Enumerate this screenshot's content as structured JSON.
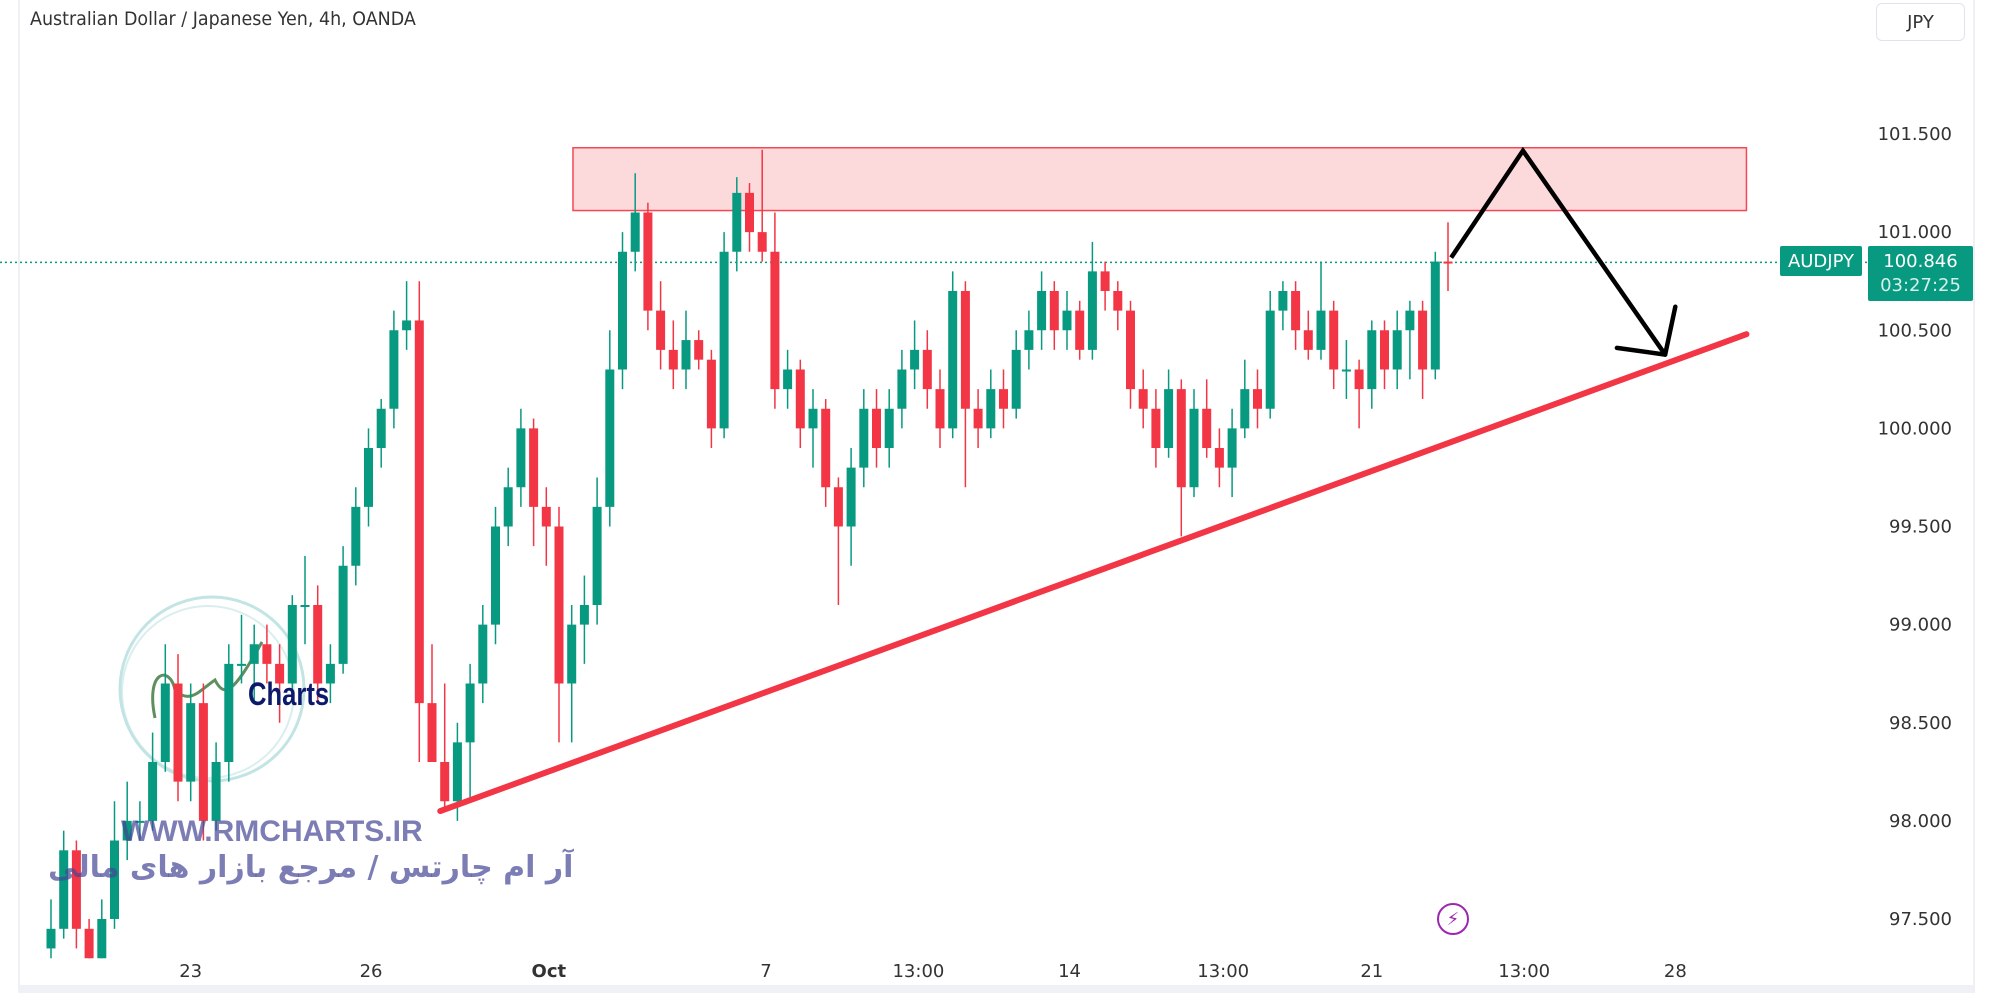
{
  "header": {
    "title": "Australian Dollar / Japanese Yen, 4h, OANDA",
    "currency_button": "JPY"
  },
  "price_tag": {
    "symbol": "AUDJPY",
    "price": "100.846",
    "countdown": "03:27:25"
  },
  "watermark": {
    "brand": "Charts",
    "site": "WWW.RMCHARTS.IR",
    "tagline": "آر ام چارتس / مرجع بازار های مالی"
  },
  "colors": {
    "up": "#089981",
    "down": "#f23645",
    "zone_fill": "#fcd5d8",
    "zone_border": "#f23645",
    "trendline": "#f23645",
    "arrow": "#000000",
    "last_price": "#089981",
    "lightning": "#9c27b0"
  },
  "icons": {
    "alert": "lightning-icon"
  },
  "chart_data": {
    "type": "candlestick",
    "title": "Australian Dollar / Japanese Yen, 4h, OANDA",
    "ylim": [
      97.35,
      101.8
    ],
    "yticks": [
      "101.500",
      "101.000",
      "100.500",
      "100.000",
      "99.500",
      "99.000",
      "98.500",
      "98.000",
      "97.500"
    ],
    "xticks": [
      {
        "label": "23",
        "bar": 11
      },
      {
        "label": "26",
        "bar": 25.2
      },
      {
        "label": "Oct",
        "bar": 39.2,
        "bold": true
      },
      {
        "label": "7",
        "bar": 56.3
      },
      {
        "label": "13:00",
        "bar": 68.3
      },
      {
        "label": "14",
        "bar": 80.2
      },
      {
        "label": "13:00",
        "bar": 92.3
      },
      {
        "label": "21",
        "bar": 104
      },
      {
        "label": "13:00",
        "bar": 116
      },
      {
        "label": "28",
        "bar": 127.9
      }
    ],
    "last_price": 100.846,
    "ohlc": [
      [
        97.35,
        97.6,
        97.3,
        97.45
      ],
      [
        97.45,
        97.95,
        97.4,
        97.85
      ],
      [
        97.85,
        97.9,
        97.35,
        97.45
      ],
      [
        97.45,
        97.5,
        97.3,
        97.3
      ],
      [
        97.3,
        97.6,
        97.3,
        97.5
      ],
      [
        97.5,
        98.1,
        97.45,
        97.9
      ],
      [
        97.9,
        98.2,
        97.8,
        98.0
      ],
      [
        98.0,
        98.1,
        97.9,
        98.0
      ],
      [
        98.0,
        98.45,
        97.95,
        98.3
      ],
      [
        98.3,
        98.9,
        98.25,
        98.7
      ],
      [
        98.7,
        98.85,
        98.1,
        98.2
      ],
      [
        98.2,
        98.7,
        98.1,
        98.6
      ],
      [
        98.6,
        98.7,
        97.9,
        98.0
      ],
      [
        98.0,
        98.4,
        97.95,
        98.3
      ],
      [
        98.3,
        98.9,
        98.2,
        98.8
      ],
      [
        98.8,
        99.05,
        98.7,
        98.8
      ],
      [
        98.8,
        99.0,
        98.6,
        98.9
      ],
      [
        98.9,
        99.0,
        98.7,
        98.8
      ],
      [
        98.8,
        98.9,
        98.5,
        98.7
      ],
      [
        98.7,
        99.15,
        98.6,
        99.1
      ],
      [
        99.1,
        99.35,
        98.9,
        99.1
      ],
      [
        99.1,
        99.2,
        98.6,
        98.7
      ],
      [
        98.7,
        98.9,
        98.6,
        98.8
      ],
      [
        98.8,
        99.4,
        98.75,
        99.3
      ],
      [
        99.3,
        99.7,
        99.2,
        99.6
      ],
      [
        99.6,
        100.0,
        99.5,
        99.9
      ],
      [
        99.9,
        100.15,
        99.8,
        100.1
      ],
      [
        100.1,
        100.6,
        100.0,
        100.5
      ],
      [
        100.5,
        100.75,
        100.4,
        100.55
      ],
      [
        100.55,
        100.75,
        98.3,
        98.6
      ],
      [
        98.6,
        98.9,
        98.3,
        98.3
      ],
      [
        98.3,
        98.7,
        98.05,
        98.1
      ],
      [
        98.1,
        98.5,
        98.0,
        98.4
      ],
      [
        98.4,
        98.8,
        98.1,
        98.7
      ],
      [
        98.7,
        99.1,
        98.6,
        99.0
      ],
      [
        99.0,
        99.6,
        98.9,
        99.5
      ],
      [
        99.5,
        99.8,
        99.4,
        99.7
      ],
      [
        99.7,
        100.1,
        99.6,
        100.0
      ],
      [
        100.0,
        100.05,
        99.4,
        99.6
      ],
      [
        99.6,
        99.7,
        99.3,
        99.5
      ],
      [
        99.5,
        99.6,
        98.4,
        98.7
      ],
      [
        98.7,
        99.1,
        98.4,
        99.0
      ],
      [
        99.0,
        99.25,
        98.8,
        99.1
      ],
      [
        99.1,
        99.75,
        99.0,
        99.6
      ],
      [
        99.6,
        100.5,
        99.5,
        100.3
      ],
      [
        100.3,
        101.0,
        100.2,
        100.9
      ],
      [
        100.9,
        101.3,
        100.8,
        101.1
      ],
      [
        101.1,
        101.15,
        100.5,
        100.6
      ],
      [
        100.6,
        100.75,
        100.3,
        100.4
      ],
      [
        100.4,
        100.55,
        100.2,
        100.3
      ],
      [
        100.3,
        100.6,
        100.2,
        100.45
      ],
      [
        100.45,
        100.5,
        100.3,
        100.35
      ],
      [
        100.35,
        100.4,
        99.9,
        100.0
      ],
      [
        100.0,
        101.0,
        99.95,
        100.9
      ],
      [
        100.9,
        101.28,
        100.8,
        101.2
      ],
      [
        101.2,
        101.25,
        100.9,
        101.0
      ],
      [
        101.0,
        101.42,
        100.85,
        100.9
      ],
      [
        100.9,
        101.1,
        100.1,
        100.2
      ],
      [
        100.2,
        100.4,
        100.1,
        100.3
      ],
      [
        100.3,
        100.35,
        99.9,
        100.0
      ],
      [
        100.0,
        100.2,
        99.8,
        100.1
      ],
      [
        100.1,
        100.15,
        99.6,
        99.7
      ],
      [
        99.7,
        99.75,
        99.1,
        99.5
      ],
      [
        99.5,
        99.9,
        99.3,
        99.8
      ],
      [
        99.8,
        100.2,
        99.7,
        100.1
      ],
      [
        100.1,
        100.2,
        99.8,
        99.9
      ],
      [
        99.9,
        100.2,
        99.8,
        100.1
      ],
      [
        100.1,
        100.4,
        100.0,
        100.3
      ],
      [
        100.3,
        100.55,
        100.2,
        100.4
      ],
      [
        100.4,
        100.5,
        100.1,
        100.2
      ],
      [
        100.2,
        100.3,
        99.9,
        100.0
      ],
      [
        100.0,
        100.8,
        99.95,
        100.7
      ],
      [
        100.7,
        100.75,
        99.7,
        100.1
      ],
      [
        100.1,
        100.2,
        99.9,
        100.0
      ],
      [
        100.0,
        100.3,
        99.95,
        100.2
      ],
      [
        100.2,
        100.3,
        100.0,
        100.1
      ],
      [
        100.1,
        100.5,
        100.05,
        100.4
      ],
      [
        100.4,
        100.6,
        100.3,
        100.5
      ],
      [
        100.5,
        100.8,
        100.4,
        100.7
      ],
      [
        100.7,
        100.75,
        100.4,
        100.5
      ],
      [
        100.5,
        100.7,
        100.4,
        100.6
      ],
      [
        100.6,
        100.65,
        100.35,
        100.4
      ],
      [
        100.4,
        100.95,
        100.35,
        100.8
      ],
      [
        100.8,
        100.85,
        100.6,
        100.7
      ],
      [
        100.7,
        100.75,
        100.5,
        100.6
      ],
      [
        100.6,
        100.65,
        100.1,
        100.2
      ],
      [
        100.2,
        100.3,
        100.0,
        100.1
      ],
      [
        100.1,
        100.2,
        99.8,
        99.9
      ],
      [
        99.9,
        100.3,
        99.85,
        100.2
      ],
      [
        100.2,
        100.25,
        99.45,
        99.7
      ],
      [
        99.7,
        100.2,
        99.65,
        100.1
      ],
      [
        100.1,
        100.25,
        99.85,
        99.9
      ],
      [
        99.9,
        100.0,
        99.7,
        99.8
      ],
      [
        99.8,
        100.1,
        99.65,
        100.0
      ],
      [
        100.0,
        100.35,
        99.95,
        100.2
      ],
      [
        100.2,
        100.3,
        100.0,
        100.1
      ],
      [
        100.1,
        100.7,
        100.05,
        100.6
      ],
      [
        100.6,
        100.75,
        100.5,
        100.7
      ],
      [
        100.7,
        100.75,
        100.4,
        100.5
      ],
      [
        100.5,
        100.6,
        100.35,
        100.4
      ],
      [
        100.4,
        100.85,
        100.35,
        100.6
      ],
      [
        100.6,
        100.65,
        100.2,
        100.3
      ],
      [
        100.3,
        100.45,
        100.15,
        100.3
      ],
      [
        100.3,
        100.35,
        100.0,
        100.2
      ],
      [
        100.2,
        100.55,
        100.1,
        100.5
      ],
      [
        100.5,
        100.55,
        100.2,
        100.3
      ],
      [
        100.3,
        100.6,
        100.2,
        100.5
      ],
      [
        100.5,
        100.65,
        100.25,
        100.6
      ],
      [
        100.6,
        100.65,
        100.15,
        100.3
      ],
      [
        100.3,
        100.9,
        100.25,
        100.85
      ],
      [
        100.85,
        101.05,
        100.7,
        100.846
      ]
    ],
    "drawings": {
      "resistance_zone": {
        "bar_from": 41.1,
        "bar_to": 133.5,
        "price_from": 101.11,
        "price_to": 101.43
      },
      "trendline": {
        "from": [
          30.65,
          98.05
        ],
        "to": [
          133.5,
          100.48
        ]
      },
      "projection_arrow": {
        "points": [
          [
            110.25,
            100.87
          ],
          [
            115.9,
            101.415
          ],
          [
            127.1,
            100.376
          ]
        ],
        "head": [
          [
            123.3,
            100.41
          ],
          [
            127.9,
            100.62
          ]
        ]
      }
    }
  }
}
